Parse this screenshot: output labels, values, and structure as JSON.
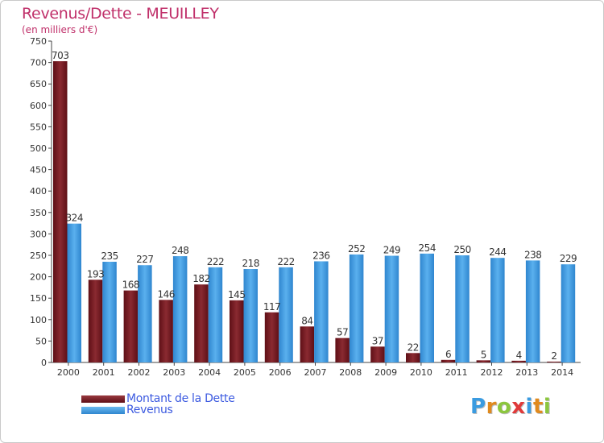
{
  "title": "Revenus/Dette - MEUILLEY",
  "subtitle": "(en milliers d'€)",
  "colors": {
    "dette": "#7a1c22",
    "revenus": "#4aa0e3",
    "title": "#c0306a",
    "legend_text": "#3c5ae0"
  },
  "chart_data": {
    "type": "bar",
    "title": "Revenus/Dette - MEUILLEY",
    "subtitle": "(en milliers d'€)",
    "xlabel": "",
    "ylabel": "",
    "ylim": [
      0,
      750
    ],
    "yticks": [
      0,
      50,
      100,
      150,
      200,
      250,
      300,
      350,
      400,
      450,
      500,
      550,
      600,
      650,
      700,
      750
    ],
    "categories": [
      "2000",
      "2001",
      "2002",
      "2003",
      "2004",
      "2005",
      "2006",
      "2007",
      "2008",
      "2009",
      "2010",
      "2011",
      "2012",
      "2013",
      "2014"
    ],
    "series": [
      {
        "name": "Montant de la Dette",
        "values": [
          703,
          193,
          168,
          146,
          182,
          145,
          117,
          84,
          57,
          37,
          22,
          6,
          5,
          4,
          2
        ]
      },
      {
        "name": "Revenus",
        "values": [
          324,
          235,
          227,
          248,
          222,
          218,
          222,
          236,
          252,
          249,
          254,
          250,
          244,
          238,
          229
        ]
      }
    ],
    "legend": "bottom-left",
    "grid": false
  },
  "legend": {
    "dette_label": "Montant de la Dette",
    "revenus_label": "Revenus"
  },
  "logo": {
    "text": "Proxiti"
  }
}
